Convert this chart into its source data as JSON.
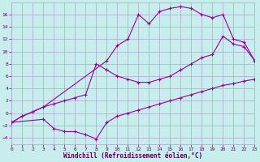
{
  "xlabel": "Windchill (Refroidissement éolien,°C)",
  "bg_color": "#c8eded",
  "grid_color": "#aaaacc",
  "line_color": "#990099",
  "xlim": [
    0,
    23
  ],
  "ylim": [
    -5,
    18
  ],
  "xticks": [
    0,
    1,
    2,
    3,
    4,
    5,
    6,
    7,
    8,
    9,
    10,
    11,
    12,
    13,
    14,
    15,
    16,
    17,
    18,
    19,
    20,
    21,
    22,
    23
  ],
  "yticks": [
    -4,
    -2,
    0,
    2,
    4,
    6,
    8,
    10,
    12,
    14,
    16
  ],
  "curve1_x": [
    0,
    1,
    3,
    9,
    10,
    11,
    12,
    13,
    14,
    15,
    16,
    17,
    18,
    19,
    20,
    21,
    22,
    23
  ],
  "curve1_y": [
    -1.5,
    -0.5,
    1.0,
    8.5,
    11.0,
    12.0,
    16.0,
    14.5,
    16.5,
    17.0,
    17.3,
    17.0,
    16.0,
    15.5,
    16.0,
    12.0,
    11.5,
    8.5
  ],
  "curve2_x": [
    0,
    3,
    4,
    5,
    6,
    7,
    8,
    9,
    10,
    11,
    12,
    13,
    14,
    15,
    16,
    17,
    18,
    19,
    20,
    21,
    22,
    23
  ],
  "curve2_y": [
    -1.5,
    -1.0,
    -2.5,
    -3.0,
    -3.0,
    -3.5,
    -4.2,
    -1.5,
    -0.5,
    0.0,
    0.5,
    1.0,
    1.5,
    2.0,
    2.5,
    3.0,
    3.5,
    4.0,
    4.5,
    4.8,
    5.2,
    5.5
  ],
  "curve3_x": [
    0,
    1,
    2,
    3,
    4,
    5,
    6,
    7,
    8,
    9,
    10,
    11,
    12,
    13,
    14,
    15,
    16,
    17,
    18,
    19,
    20,
    21,
    22,
    23
  ],
  "curve3_y": [
    -1.5,
    -0.5,
    0.2,
    1.0,
    1.5,
    2.0,
    2.5,
    3.0,
    8.0,
    7.0,
    6.0,
    5.5,
    5.0,
    5.0,
    5.5,
    6.0,
    7.0,
    8.0,
    9.0,
    9.5,
    12.5,
    11.2,
    10.8,
    8.5
  ]
}
